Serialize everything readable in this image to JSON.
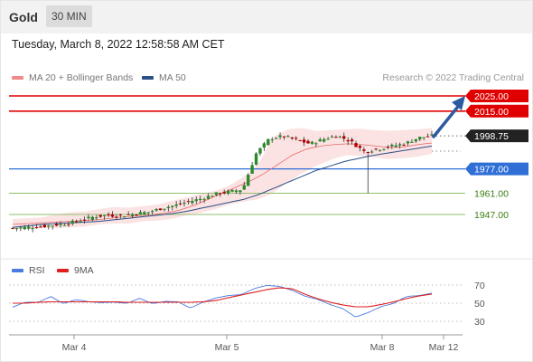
{
  "header": {
    "asset": "Gold",
    "timeframe": "30 MIN"
  },
  "datetime": "Tuesday, March 8, 2022 12:58:58 AM CET",
  "copyright": "Research © 2022 Trading Central",
  "colors": {
    "resistance": "#e00000",
    "support": "#2f6fd6",
    "target": "#3a7d0f",
    "current": "#222222",
    "candle_up": "#2a8a2a",
    "candle_down": "#b00000",
    "ma20": "#e86a6a",
    "ma50": "#2b4f87",
    "band": "#fbe0e0",
    "rsi": "#4a7be0",
    "rsi_ma": "#e02020",
    "arrow": "#2c5aa0"
  },
  "chart_data": [
    {
      "type": "candlestick",
      "legend": [
        {
          "name": "MA 20 + Bollinger Bands",
          "color": "#f08a8a"
        },
        {
          "name": "MA 50",
          "color": "#2b4f87"
        }
      ],
      "levels": [
        {
          "value": 2025.0,
          "label": "2025.00",
          "kind": "resistance"
        },
        {
          "value": 2015.0,
          "label": "2015.00",
          "kind": "resistance"
        },
        {
          "value": 1998.75,
          "label": "1998.75",
          "kind": "current"
        },
        {
          "value": 1977.0,
          "label": "1977.00",
          "kind": "support"
        },
        {
          "value": 1961.0,
          "label": "1961.00",
          "kind": "target"
        },
        {
          "value": 1947.0,
          "label": "1947.00",
          "kind": "target"
        }
      ],
      "x_ticks": [
        "Mar 4",
        "Mar 5",
        "Mar 8",
        "Mar 12"
      ],
      "ylim": [
        1938.5,
        2025.0
      ],
      "price_path": [
        1938,
        1938.5,
        1939,
        1940,
        1941,
        1943,
        1945.5,
        1946.5,
        1946,
        1947.5,
        1948.5,
        1951,
        1953,
        1955.5,
        1957.5,
        1960.5,
        1962,
        1963.5,
        1987,
        1997,
        1998.5,
        1996,
        1993.5,
        1996.5,
        1999,
        1995,
        1988.5,
        1990,
        1992,
        1993.5,
        1997.5,
        1998.75
      ],
      "ma20_path": [
        1940.5,
        1941,
        1941.5,
        1942,
        1942.5,
        1943,
        1943.5,
        1944.5,
        1945.5,
        1946,
        1947,
        1948,
        1950,
        1953,
        1957,
        1961,
        1965,
        1969,
        1974,
        1980,
        1986,
        1990,
        1992,
        1993,
        1993.5,
        1993,
        1992,
        1991,
        1991.5,
        1993,
        1994
      ],
      "ma50_path": [
        1938.5,
        1939.5,
        1940.5,
        1941,
        1941.5,
        1942,
        1942.5,
        1943.5,
        1944.5,
        1945.5,
        1946.5,
        1947.5,
        1949,
        1951,
        1953,
        1955,
        1957,
        1960,
        1964,
        1968,
        1972,
        1976,
        1979,
        1982,
        1984,
        1986,
        1987.5,
        1989,
        1990.5,
        1992
      ],
      "band_upper_path": [
        1944,
        1944.5,
        1945,
        1947,
        1948.5,
        1949,
        1950.5,
        1952,
        1951.5,
        1952.5,
        1953.5,
        1956,
        1958,
        1960.5,
        1962.5,
        1966,
        1972,
        1980,
        1998,
        2003,
        2004,
        2002,
        2002.5,
        2003,
        2003.5,
        2002.5,
        2002,
        2002.5,
        2003,
        2004
      ],
      "band_lower_path": [
        1937.5,
        1937.5,
        1938,
        1938,
        1938.5,
        1939,
        1940.5,
        1941,
        1941,
        1942.5,
        1943,
        1944,
        1946.5,
        1948,
        1950.5,
        1953.5,
        1955.5,
        1957,
        1961,
        1968,
        1974,
        1979,
        1983,
        1986,
        1985.5,
        1984.5,
        1983.5,
        1984,
        1985,
        1987
      ]
    },
    {
      "type": "line",
      "legend": [
        {
          "name": "RSI",
          "color": "#4a7be0"
        },
        {
          "name": "9MA",
          "color": "#e02020"
        }
      ],
      "y_ticks": [
        70,
        50,
        30
      ],
      "ylim": [
        20,
        80
      ],
      "rsi_path": [
        48,
        52,
        50,
        55,
        51,
        54,
        50,
        53,
        52,
        49,
        53,
        51,
        52,
        50,
        47,
        52,
        55,
        56,
        61,
        66,
        68,
        71,
        65,
        57,
        52,
        50,
        44,
        33,
        42,
        47,
        49,
        55,
        60,
        61
      ],
      "rsi_ma_path": [
        50,
        50,
        51,
        51.5,
        51.5,
        51.5,
        51.5,
        51.5,
        51.5,
        51,
        51,
        51,
        51,
        51,
        51,
        51.5,
        53,
        56,
        59,
        62,
        65,
        67,
        66,
        60,
        55,
        51,
        48,
        46,
        46,
        48.5,
        51.5,
        55,
        58,
        60
      ]
    }
  ]
}
